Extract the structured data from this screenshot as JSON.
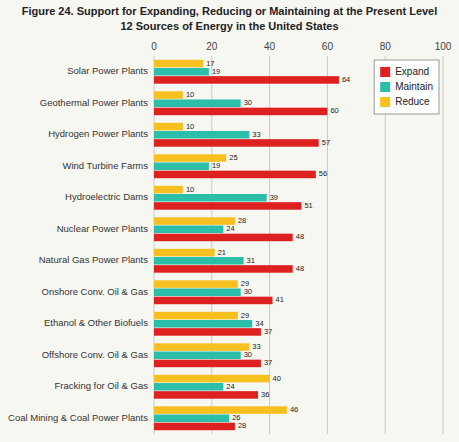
{
  "chart_data": {
    "type": "bar",
    "orientation": "horizontal",
    "title": "Figure 24. Support for Expanding, Reducing or Maintaining at the Present Level",
    "subtitle": "12 Sources of Energy in the United States",
    "categories": [
      "Solar Power Plants",
      "Geothermal Power Plants",
      "Hydrogen Power Plants",
      "Wind Turbine Farms",
      "Hydroelectric Dams",
      "Nuclear Power Plants",
      "Natural Gas Power Plants",
      "Onshore Conv. Oil & Gas",
      "Ethanol & Other Biofuels",
      "Offshore Conv. Oil & Gas",
      "Fracking for Oil & Gas",
      "Coal Mining & Coal Power Plants"
    ],
    "series": [
      {
        "name": "Expand",
        "color": "#dd2020",
        "values": [
          64,
          60,
          57,
          56,
          51,
          48,
          48,
          41,
          37,
          37,
          36,
          28
        ]
      },
      {
        "name": "Maintain",
        "color": "#2bbfaa",
        "values": [
          19,
          30,
          33,
          19,
          39,
          24,
          31,
          30,
          34,
          30,
          24,
          26
        ]
      },
      {
        "name": "Reduce",
        "color": "#f5c020",
        "values": [
          17,
          10,
          10,
          25,
          10,
          28,
          21,
          29,
          29,
          33,
          40,
          46
        ]
      }
    ],
    "xlim": [
      0,
      100
    ],
    "xticks": [
      0,
      20,
      40,
      60,
      80,
      100
    ],
    "grid": true,
    "legend": "upper right",
    "data_labels": true
  }
}
